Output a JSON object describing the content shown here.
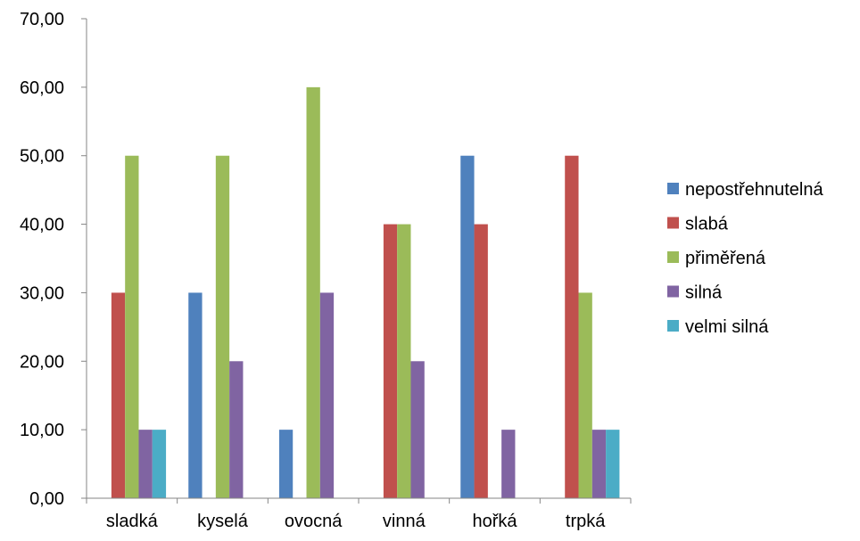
{
  "chart_data": {
    "type": "bar",
    "categories": [
      "sladká",
      "kyselá",
      "ovocná",
      "vinná",
      "hořká",
      "trpká"
    ],
    "series": [
      {
        "name": "nepostřehnutelná",
        "color": "#4F81BD",
        "values": [
          0,
          30,
          10,
          0,
          50,
          0
        ]
      },
      {
        "name": "slabá",
        "color": "#C0504D",
        "values": [
          30,
          0,
          0,
          40,
          40,
          50
        ]
      },
      {
        "name": "přiměřená",
        "color": "#9BBB59",
        "values": [
          50,
          50,
          60,
          40,
          0,
          30
        ]
      },
      {
        "name": "silná",
        "color": "#8064A2",
        "values": [
          10,
          20,
          30,
          20,
          10,
          10
        ]
      },
      {
        "name": "velmi silná",
        "color": "#4BACC6",
        "values": [
          10,
          0,
          0,
          0,
          0,
          10
        ]
      }
    ],
    "ylim": [
      0,
      70
    ],
    "yticks": [
      "0,00",
      "10,00",
      "20,00",
      "30,00",
      "40,00",
      "50,00",
      "60,00",
      "70,00"
    ],
    "grid": false,
    "legend_position": "right"
  }
}
